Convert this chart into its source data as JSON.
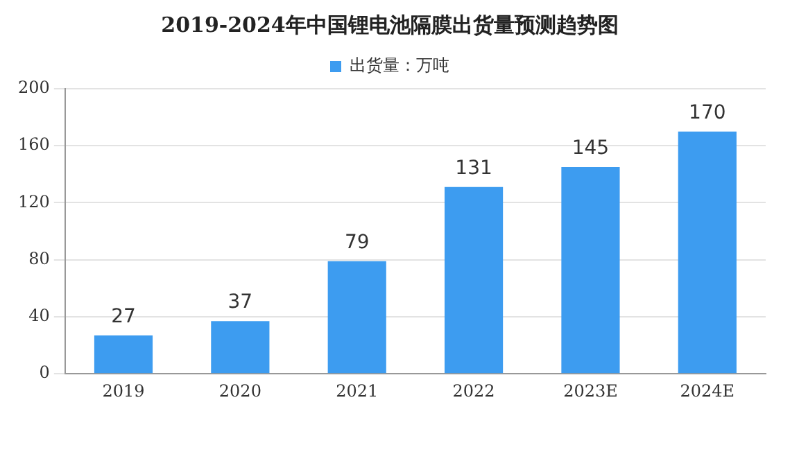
{
  "chart_data": {
    "type": "bar",
    "title": "2019-2024年中国锂电池隔膜出货量预测趋势图",
    "categories": [
      "2019",
      "2020",
      "2021",
      "2022",
      "2023E",
      "2024E"
    ],
    "series": [
      {
        "name": "出货量：万吨",
        "color": "#3d9cf0",
        "values": [
          27,
          37,
          79,
          131,
          145,
          170
        ]
      }
    ],
    "ylim": [
      0,
      200
    ],
    "yticks": [
      0,
      40,
      80,
      120,
      160,
      200
    ],
    "grid": "y",
    "legend": "top",
    "data_labels": true
  }
}
